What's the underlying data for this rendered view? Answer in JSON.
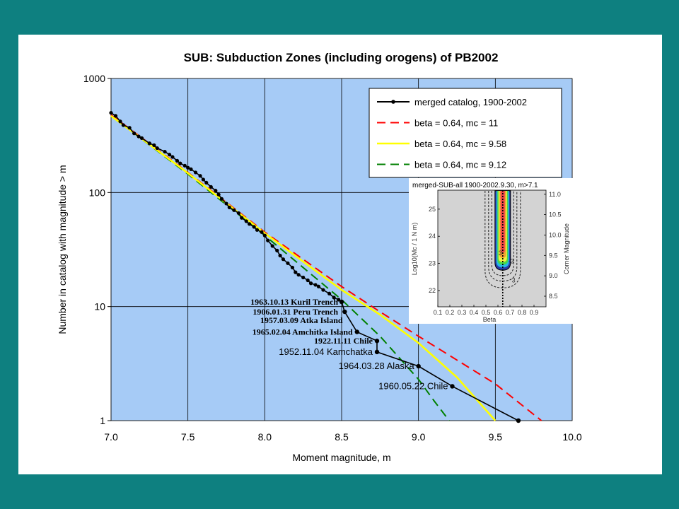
{
  "chart_data": {
    "type": "line",
    "title": "SUB: Subduction Zones (including orogens) of PB2002",
    "xlabel": "Moment magnitude, m",
    "ylabel": "Number in catalog with magnitude > m",
    "xlim": [
      7.0,
      10.0
    ],
    "ylim": [
      1,
      1000
    ],
    "yscale": "log",
    "x_ticks": [
      "7.0",
      "7.5",
      "8.0",
      "8.5",
      "9.0",
      "9.5",
      "10.0"
    ],
    "y_ticks": [
      {
        "value": 1,
        "label": "1"
      },
      {
        "value": 10,
        "label": "10"
      },
      {
        "value": 100,
        "label": "100"
      },
      {
        "value": 1000,
        "label": "1000"
      }
    ],
    "grid": true,
    "plot_background": "#a6cbf6",
    "legend_position": "top-right",
    "series": [
      {
        "name": "merged catalog, 1900-2002",
        "color": "#000000",
        "style": "solid-markers",
        "x": [
          7.0,
          7.03,
          7.06,
          7.08,
          7.12,
          7.15,
          7.18,
          7.2,
          7.25,
          7.28,
          7.3,
          7.35,
          7.38,
          7.4,
          7.43,
          7.45,
          7.48,
          7.5,
          7.52,
          7.55,
          7.58,
          7.6,
          7.62,
          7.65,
          7.68,
          7.7,
          7.72,
          7.75,
          7.77,
          7.8,
          7.83,
          7.85,
          7.88,
          7.9,
          7.93,
          7.95,
          7.98,
          8.0,
          8.02,
          8.05,
          8.08,
          8.1,
          8.12,
          8.15,
          8.18,
          8.2,
          8.22,
          8.25,
          8.28,
          8.3,
          8.33,
          8.35,
          8.38,
          8.42,
          8.45,
          8.48,
          8.5,
          8.52,
          8.6,
          8.73,
          8.73,
          9.0,
          9.22,
          9.65
        ],
        "y": [
          500,
          470,
          420,
          390,
          370,
          330,
          310,
          300,
          270,
          260,
          245,
          228,
          215,
          205,
          190,
          180,
          172,
          165,
          160,
          150,
          140,
          130,
          122,
          112,
          104,
          96,
          88,
          80,
          74,
          70,
          66,
          60,
          56,
          53,
          50,
          47,
          45,
          42,
          38,
          34,
          31,
          28,
          26,
          24,
          22,
          20,
          19,
          18,
          17,
          16,
          15.5,
          15,
          14,
          13,
          12,
          11.5,
          11,
          9,
          6,
          5,
          4,
          3,
          2,
          1
        ]
      },
      {
        "name": "beta = 0.64, mc = 11",
        "color": "#ff0000",
        "style": "dashed",
        "x": [
          7.0,
          7.5,
          8.0,
          8.5,
          8.75,
          9.0,
          9.25,
          9.5,
          9.8
        ],
        "y": [
          480,
          150,
          45,
          15,
          9,
          5.5,
          3.4,
          2.1,
          1
        ]
      },
      {
        "name": "beta = 0.64, mc = 9.58",
        "color": "#ffff00",
        "style": "solid",
        "x": [
          7.0,
          7.5,
          8.0,
          8.5,
          8.75,
          9.0,
          9.25,
          9.5
        ],
        "y": [
          470,
          148,
          44,
          14,
          8.5,
          4.8,
          2.4,
          1
        ]
      },
      {
        "name": "beta = 0.64, mc = 9.12",
        "color": "#008000",
        "style": "dashed",
        "x": [
          7.0,
          7.5,
          8.0,
          8.5,
          8.75,
          9.0,
          9.1,
          9.2
        ],
        "y": [
          470,
          145,
          42,
          11.5,
          5.5,
          2.3,
          1.5,
          1
        ]
      }
    ],
    "annotations": [
      {
        "text": "1963.10.13 Kuril Trench",
        "x": 8.505,
        "y": 11
      },
      {
        "text": "1906.01.31 Peru Trench",
        "x": 8.505,
        "y": 9
      },
      {
        "text": "1957.03.09 Atka Island",
        "x": 8.535,
        "y": 7.6
      },
      {
        "text": "1965.02.04 Amchitka Island",
        "x": 8.6,
        "y": 6
      },
      {
        "text": "1922.11.11 Chile",
        "x": 8.73,
        "y": 5
      },
      {
        "text": "1952.11.04 Kamchatka",
        "x": 8.73,
        "y": 4
      },
      {
        "text": "1964.03.28 Alaska",
        "x": 9.0,
        "y": 3
      },
      {
        "text": "1960.05.22 Chile",
        "x": 9.22,
        "y": 2
      }
    ],
    "annotation_size": "small",
    "large_annotations": [
      "1952.11.04 Kamchatka",
      "1964.03.28 Alaska",
      "1960.05.22 Chile"
    ]
  },
  "inset": {
    "title": "merged-SUB-all 1900-2002.9.30, m>7.1",
    "xlabel": "Beta",
    "ylabel_left": "Log10(Mc / 1 N m)",
    "ylabel_right": "Corner Magnitude",
    "x_ticks": [
      "0.1",
      "0.2",
      "0.3",
      "0.4",
      "0.5",
      "0.6",
      "0.7",
      "0.8",
      "0.9"
    ],
    "y_ticks_left": [
      "22",
      "23",
      "24",
      "25"
    ],
    "y_ticks_right": [
      "8.5",
      "9.0",
      "9.5",
      "10.0",
      "10.5",
      "11.0"
    ],
    "xlim": [
      0.1,
      1.0
    ],
    "ylim_left": [
      21.4,
      25.7
    ],
    "ylim_right": [
      8.24,
      11.1
    ],
    "beta_line": 0.64,
    "contour_labels": [
      {
        "text": "3",
        "x": 0.62,
        "y": 23.3
      },
      {
        "text": "-3",
        "x": 0.71,
        "y": 23.0
      },
      {
        "text": "3",
        "x": 0.73,
        "y": 22.3
      }
    ]
  }
}
